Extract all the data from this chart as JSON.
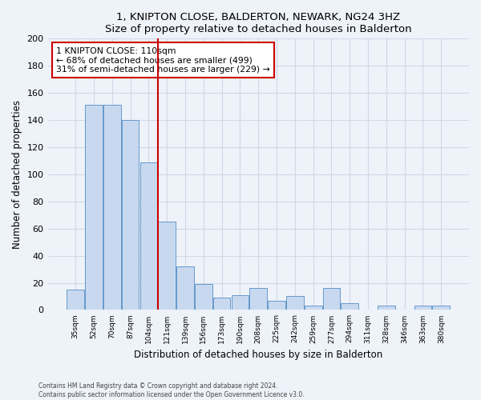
{
  "title": "1, KNIPTON CLOSE, BALDERTON, NEWARK, NG24 3HZ",
  "subtitle": "Size of property relative to detached houses in Balderton",
  "xlabel": "Distribution of detached houses by size in Balderton",
  "ylabel": "Number of detached properties",
  "bar_color": "#c8d9ef",
  "bar_edge_color": "#6699cc",
  "categories": [
    "35sqm",
    "52sqm",
    "70sqm",
    "87sqm",
    "104sqm",
    "121sqm",
    "139sqm",
    "156sqm",
    "173sqm",
    "190sqm",
    "208sqm",
    "225sqm",
    "242sqm",
    "259sqm",
    "277sqm",
    "294sqm",
    "311sqm",
    "328sqm",
    "346sqm",
    "363sqm",
    "380sqm"
  ],
  "values": [
    15,
    151,
    151,
    140,
    109,
    65,
    32,
    19,
    9,
    11,
    16,
    7,
    10,
    3,
    16,
    5,
    0,
    3,
    0,
    3,
    3
  ],
  "vline_x": 4.5,
  "vline_color": "#cc0000",
  "annotation_line1": "1 KNIPTON CLOSE: 110sqm",
  "annotation_line2": "← 68% of detached houses are smaller (499)",
  "annotation_line3": "31% of semi-detached houses are larger (229) →",
  "annotation_box_color": "#ffffff",
  "annotation_box_edge": "#cc0000",
  "ylim": [
    0,
    200
  ],
  "yticks": [
    0,
    20,
    40,
    60,
    80,
    100,
    120,
    140,
    160,
    180,
    200
  ],
  "footer1": "Contains HM Land Registry data © Crown copyright and database right 2024.",
  "footer2": "Contains public sector information licensed under the Open Government Licence v3.0.",
  "grid_color": "#d0d8e8",
  "background_color": "#eef2f9"
}
